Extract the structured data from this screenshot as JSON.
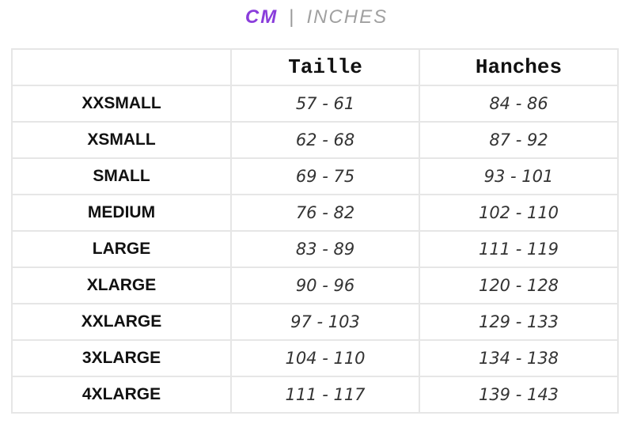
{
  "unit_toggle": {
    "active": "CM",
    "separator": "|",
    "inactive": "INCHES",
    "active_color": "#8a3ddb"
  },
  "table": {
    "headers": [
      "",
      "Taille",
      "Hanches"
    ],
    "rows": [
      [
        "XXSMALL",
        "57 - 61",
        "84 - 86"
      ],
      [
        "XSMALL",
        "62 - 68",
        "87 - 92"
      ],
      [
        "SMALL",
        "69 - 75",
        "93 - 101"
      ],
      [
        "MEDIUM",
        "76 - 82",
        "102 - 110"
      ],
      [
        "LARGE",
        "83 - 89",
        "111 - 119"
      ],
      [
        "XLARGE",
        "90 - 96",
        "120 - 128"
      ],
      [
        "XXLARGE",
        "97 - 103",
        "129 - 133"
      ],
      [
        "3XLARGE",
        "104 - 110",
        "134 - 138"
      ],
      [
        "4XLARGE",
        "111 - 117",
        "139 - 143"
      ]
    ]
  }
}
